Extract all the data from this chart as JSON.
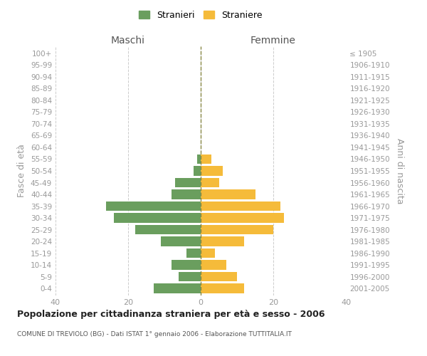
{
  "age_groups": [
    "0-4",
    "5-9",
    "10-14",
    "15-19",
    "20-24",
    "25-29",
    "30-34",
    "35-39",
    "40-44",
    "45-49",
    "50-54",
    "55-59",
    "60-64",
    "65-69",
    "70-74",
    "75-79",
    "80-84",
    "85-89",
    "90-94",
    "95-99",
    "100+"
  ],
  "birth_years": [
    "2001-2005",
    "1996-2000",
    "1991-1995",
    "1986-1990",
    "1981-1985",
    "1976-1980",
    "1971-1975",
    "1966-1970",
    "1961-1965",
    "1956-1960",
    "1951-1955",
    "1946-1950",
    "1941-1945",
    "1936-1940",
    "1931-1935",
    "1926-1930",
    "1921-1925",
    "1916-1920",
    "1911-1915",
    "1906-1910",
    "≤ 1905"
  ],
  "maschi": [
    13,
    6,
    8,
    4,
    11,
    18,
    24,
    26,
    8,
    7,
    2,
    1,
    0,
    0,
    0,
    0,
    0,
    0,
    0,
    0,
    0
  ],
  "femmine": [
    12,
    10,
    7,
    4,
    12,
    20,
    23,
    22,
    15,
    5,
    6,
    3,
    0,
    0,
    0,
    0,
    0,
    0,
    0,
    0,
    0
  ],
  "color_maschi": "#6a9e5e",
  "color_femmine": "#f5bb3a",
  "xlim": 40,
  "title": "Popolazione per cittadinanza straniera per età e sesso - 2006",
  "subtitle": "COMUNE DI TREVIOLO (BG) - Dati ISTAT 1° gennaio 2006 - Elaborazione TUTTITALIA.IT",
  "ylabel_left": "Fasce di età",
  "ylabel_right": "Anni di nascita",
  "legend_maschi": "Stranieri",
  "legend_femmine": "Straniere",
  "label_maschi": "Maschi",
  "label_femmine": "Femmine",
  "background_color": "#ffffff",
  "grid_color": "#cccccc",
  "tick_color": "#999999"
}
